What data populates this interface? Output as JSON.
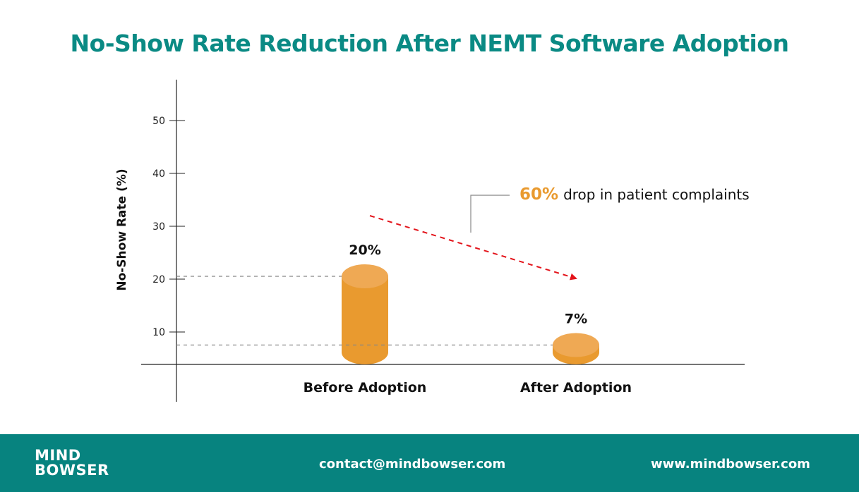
{
  "chart_data": {
    "type": "bar",
    "title": "No-Show Rate Reduction After NEMT Software Adoption",
    "xlabel": "",
    "ylabel": "No-Show Rate (%)",
    "categories": [
      "Before Adoption",
      "After Adoption"
    ],
    "values": [
      20,
      7
    ],
    "data_labels": [
      "20%",
      "7%"
    ],
    "yticks": [
      10,
      20,
      30,
      40,
      50
    ],
    "ylim": [
      0,
      50
    ],
    "grid": false,
    "bar_style": "3d-cylinder",
    "bar_color": "#e99a2f",
    "annotation": {
      "highlight": "60%",
      "text": "drop in patient complaints",
      "highlight_color": "#e99a2f",
      "arrow_color": "#e3141b"
    }
  },
  "footer": {
    "logo_line1": "MIND",
    "logo_line2": "BOWSER",
    "email": "contact@mindbowser.com",
    "website": "www.mindbowser.com",
    "background": "#07837f"
  }
}
